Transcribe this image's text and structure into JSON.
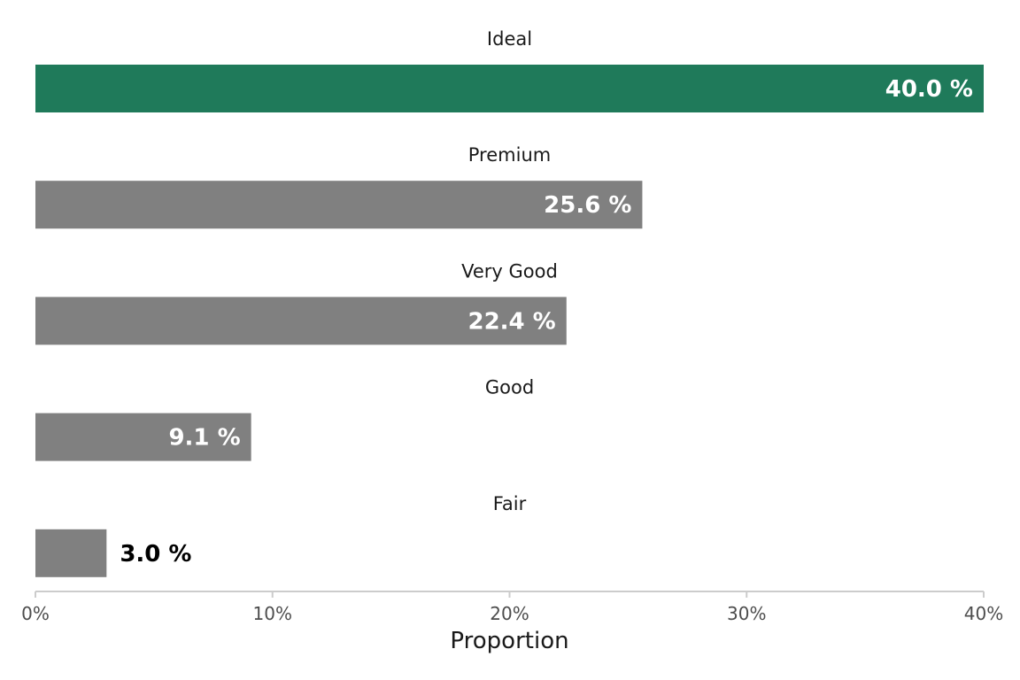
{
  "chart_data": {
    "type": "bar",
    "orientation": "horizontal",
    "categories": [
      "Ideal",
      "Premium",
      "Very Good",
      "Good",
      "Fair"
    ],
    "values": [
      40.0,
      25.6,
      22.4,
      9.1,
      3.0
    ],
    "value_labels": [
      "40.0 %",
      "25.6 %",
      "22.4 %",
      "9.1 %",
      "3.0 %"
    ],
    "xlabel": "Proportion",
    "xlim": [
      0,
      40
    ],
    "x_ticks": [
      0,
      10,
      20,
      30,
      40
    ],
    "x_tick_labels": [
      "0%",
      "10%",
      "20%",
      "30%",
      "40%"
    ],
    "highlight_category": "Ideal",
    "colors": {
      "highlight": "#1f7a5a",
      "default": "#808080",
      "label_inside": "#ffffff",
      "label_outside": "#000000",
      "axis": "#cccccc"
    },
    "grid": false,
    "legend": "none"
  }
}
